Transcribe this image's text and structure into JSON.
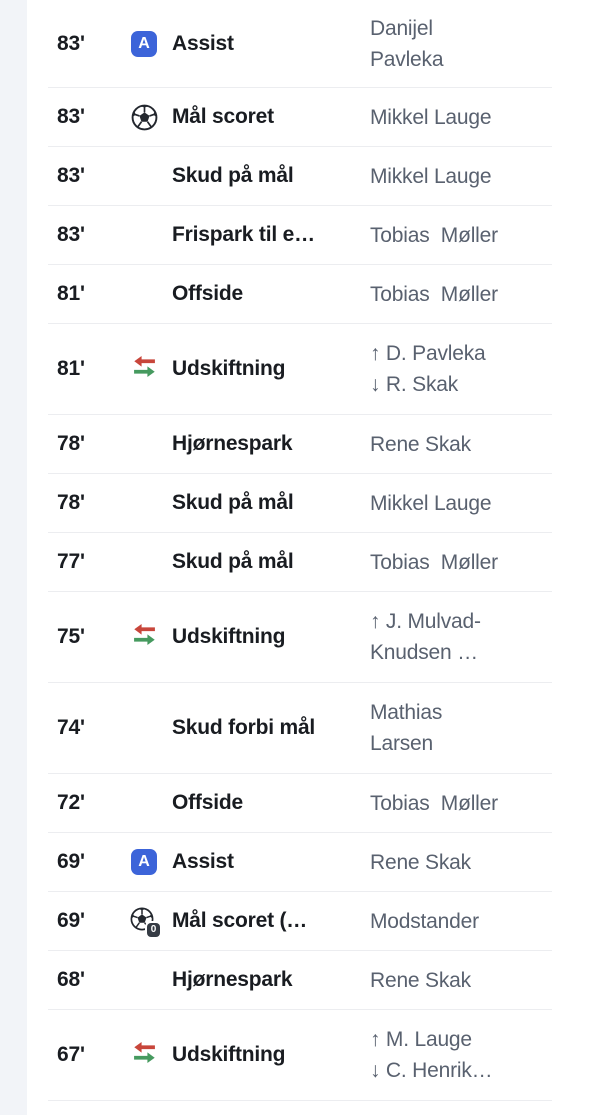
{
  "page": {
    "background_color": "#ffffff",
    "left_strip_color": "#f2f4f8",
    "divider_color": "#ecedf0"
  },
  "colors": {
    "time_text": "#191c21",
    "event_text": "#191c21",
    "player_text": "#59616f",
    "assist_badge_blue": "#3c64d9",
    "substitution_red": "#c8463b",
    "substitution_green": "#469a5f",
    "opponent_badge_dark": "#353b44"
  },
  "icons": {
    "assist_letter": "A",
    "opponent_goal_badge": "0",
    "legend": {
      "assist": "assist-badge-icon",
      "goal": "soccer-ball-icon",
      "goal-opponent": "opponent-goal-icon",
      "substitution": "substitution-arrows-icon"
    }
  },
  "rows": [
    {
      "time": "83'",
      "icon": "assist",
      "event": "Assist",
      "player_lines": [
        "Danijel",
        "Pavleka"
      ]
    },
    {
      "time": "83'",
      "icon": "goal",
      "event": "Mål scoret",
      "player_lines": [
        "Mikkel Lauge"
      ]
    },
    {
      "time": "83'",
      "icon": "none",
      "event": "Skud på mål",
      "player_lines": [
        "Mikkel Lauge"
      ]
    },
    {
      "time": "83'",
      "icon": "none",
      "event": "Frispark til e…",
      "player_lines": [
        "Tobias  Møller"
      ]
    },
    {
      "time": "81'",
      "icon": "none",
      "event": "Offside",
      "player_lines": [
        "Tobias  Møller"
      ]
    },
    {
      "time": "81'",
      "icon": "substitution",
      "event": "Udskiftning",
      "player_lines": [
        "↑ D. Pavleka",
        "↓ R. Skak"
      ]
    },
    {
      "time": "78'",
      "icon": "none",
      "event": "Hjørnespark",
      "player_lines": [
        "Rene Skak"
      ]
    },
    {
      "time": "78'",
      "icon": "none",
      "event": "Skud på mål",
      "player_lines": [
        "Mikkel Lauge"
      ]
    },
    {
      "time": "77'",
      "icon": "none",
      "event": "Skud på mål",
      "player_lines": [
        "Tobias  Møller"
      ]
    },
    {
      "time": "75'",
      "icon": "substitution",
      "event": "Udskiftning",
      "player_lines": [
        "↑ J. Mulvad-",
        "Knudsen …"
      ]
    },
    {
      "time": "74'",
      "icon": "none",
      "event": "Skud forbi mål",
      "player_lines": [
        "Mathias",
        "Larsen"
      ]
    },
    {
      "time": "72'",
      "icon": "none",
      "event": "Offside",
      "player_lines": [
        "Tobias  Møller"
      ]
    },
    {
      "time": "69'",
      "icon": "assist",
      "event": "Assist",
      "player_lines": [
        "Rene Skak"
      ]
    },
    {
      "time": "69'",
      "icon": "goal-opponent",
      "event": "Mål scoret (…",
      "player_lines": [
        "Modstander"
      ]
    },
    {
      "time": "68'",
      "icon": "none",
      "event": "Hjørnespark",
      "player_lines": [
        "Rene Skak"
      ]
    },
    {
      "time": "67'",
      "icon": "substitution",
      "event": "Udskiftning",
      "player_lines": [
        "↑ M. Lauge",
        "↓ C. Henrik…"
      ]
    }
  ]
}
